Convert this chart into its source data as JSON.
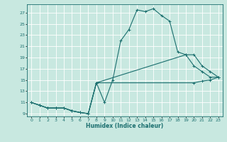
{
  "xlabel": "Humidex (Indice chaleur)",
  "xlim": [
    -0.5,
    23.5
  ],
  "ylim": [
    8.5,
    28.5
  ],
  "yticks": [
    9,
    11,
    13,
    15,
    17,
    19,
    21,
    23,
    25,
    27
  ],
  "xticks": [
    0,
    1,
    2,
    3,
    4,
    5,
    6,
    7,
    8,
    9,
    10,
    11,
    12,
    13,
    14,
    15,
    16,
    17,
    18,
    19,
    20,
    21,
    22,
    23
  ],
  "bg_color": "#c8e8e0",
  "line_color": "#1a6e6e",
  "grid_color": "#ffffff",
  "curve1_x": [
    0,
    1,
    2,
    3,
    4,
    5,
    6,
    7,
    8,
    9,
    10,
    11,
    12,
    13,
    14,
    15,
    16,
    17,
    18,
    19,
    20,
    21,
    22,
    23
  ],
  "curve1_y": [
    11,
    10.5,
    10,
    10,
    10,
    9.5,
    9.2,
    9.0,
    14.5,
    11,
    15,
    22,
    24,
    27.5,
    27.2,
    27.7,
    26.5,
    25.5,
    20.0,
    19.5,
    17.5,
    16.5,
    15.5,
    15.5
  ],
  "curve2_x": [
    0,
    1,
    2,
    3,
    4,
    5,
    6,
    7,
    8,
    20,
    21,
    22,
    23
  ],
  "curve2_y": [
    11,
    10.5,
    10,
    10,
    10,
    9.5,
    9.2,
    9.0,
    14.5,
    14.5,
    14.8,
    15.0,
    15.5
  ],
  "curve3_x": [
    0,
    1,
    2,
    3,
    4,
    5,
    6,
    7,
    8,
    19,
    20,
    21,
    22,
    23
  ],
  "curve3_y": [
    11,
    10.5,
    10,
    10,
    10,
    9.5,
    9.2,
    9.0,
    14.5,
    19.5,
    19.5,
    17.5,
    16.5,
    15.5
  ]
}
